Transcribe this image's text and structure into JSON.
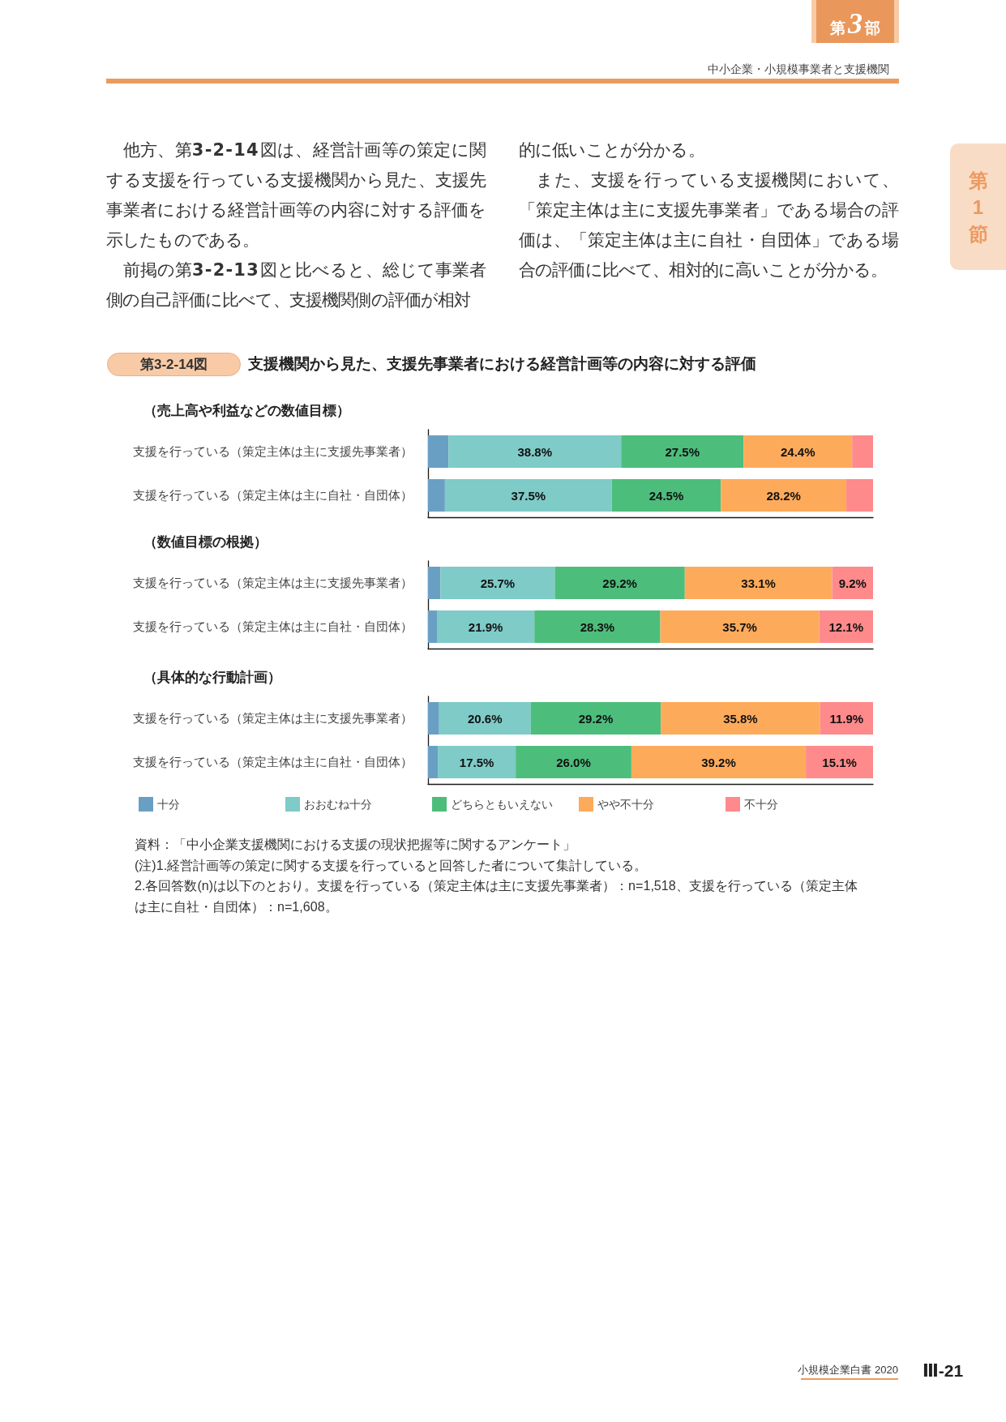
{
  "chart_data": [
    {
      "type": "bar",
      "orientation": "horizontal",
      "stacked": true,
      "tick_labels": "y",
      "title": "支援機関から見た、支援先事業者における経営計画等の内容に対する評価",
      "subtitle": "（売上高や利益などの数値目標）",
      "annotations": [
        "第3部",
        "中小企業・小規模事業者と支援機関",
        "第1節",
        "他方、第3-2-14図は、経営計画等の策定に関する支援を行っている支援機関から見た、支援先事業者における経営計画等の内容に対する評価を示したものである。",
        "前掲の第3-2-13図と比べると、総じて事業者側の自己評価に比べて、支援機関側の評価が相対",
        "的に低いことが分かる。",
        "また、支援を行っている支援機関において、「策定主体は主に支援先事業者」である場合の評価は、「策定主体は主に自社・自団体」である場合の評価に比べて、相対的に高いことが分かる。",
        "第3-2-14図"
      ],
      "categories": [
        "支援を行っている（策定主体は主に支援先事業者）",
        "支援を行っている（策定主体は主に自社・自団体）"
      ],
      "series": [
        {
          "color": "#6a9fc4",
          "values": [
            4.6,
            3.8
          ]
        },
        {
          "color": "#7ecbc8",
          "values": [
            38.8,
            37.5
          ],
          "value_labels": [
            "38.8%",
            "37.5%"
          ]
        },
        {
          "color": "#4dbd7b",
          "values": [
            27.5,
            24.5
          ],
          "value_labels": [
            "27.5%",
            "24.5%"
          ]
        },
        {
          "color": "#fdab5b",
          "values": [
            24.4,
            28.2
          ],
          "value_labels": [
            "24.4%",
            "28.2%"
          ]
        },
        {
          "color": "#fe8a8b",
          "values": [
            4.7,
            6.0
          ]
        }
      ]
    },
    {
      "type": "bar",
      "orientation": "horizontal",
      "stacked": true,
      "tick_labels": "y",
      "subtitle": "（数値目標の根拠）",
      "categories": [
        "支援を行っている（策定主体は主に支援先事業者）",
        "支援を行っている（策定主体は主に自社・自団体）"
      ],
      "series": [
        {
          "color": "#6a9fc4",
          "values": [
            2.8,
            2.0
          ]
        },
        {
          "color": "#7ecbc8",
          "values": [
            25.7,
            21.9
          ],
          "value_labels": [
            "25.7%",
            "21.9%"
          ]
        },
        {
          "color": "#4dbd7b",
          "values": [
            29.2,
            28.3
          ],
          "value_labels": [
            "29.2%",
            "28.3%"
          ]
        },
        {
          "color": "#fdab5b",
          "values": [
            33.1,
            35.7
          ],
          "value_labels": [
            "33.1%",
            "35.7%"
          ]
        },
        {
          "color": "#fe8a8b",
          "values": [
            9.2,
            12.1
          ],
          "value_labels": [
            "9.2%",
            "12.1%"
          ]
        }
      ]
    },
    {
      "type": "bar",
      "orientation": "horizontal",
      "stacked": true,
      "tick_labels": "y",
      "legend": "bottom",
      "subtitle": "（具体的な行動計画）",
      "annotations": [
        "資料：「中小企業支援機関における支援の現状把握等に関するアンケート」",
        "(注)1.経営計画等の策定に関する支援を行っていると回答した者について集計している。",
        "2.各回答数(n)は以下のとおり。支援を行っている（策定主体は主に支援先事業者）：n=1,518、支援を行っている（策定主体は主に自社・自団体）：n=1,608。",
        "小規模企業白書 2020",
        "Ⅲ-21"
      ],
      "categories": [
        "支援を行っている（策定主体は主に支援先事業者）",
        "支援を行っている（策定主体は主に自社・自団体）"
      ],
      "series": [
        {
          "name": "十分",
          "color": "#6a9fc4",
          "values": [
            2.5,
            2.2
          ]
        },
        {
          "name": "おおむね十分",
          "color": "#7ecbc8",
          "values": [
            20.6,
            17.5
          ],
          "value_labels": [
            "20.6%",
            "17.5%"
          ]
        },
        {
          "name": "どちらともいえない",
          "color": "#4dbd7b",
          "values": [
            29.2,
            26.0
          ],
          "value_labels": [
            "29.2%",
            "26.0%"
          ]
        },
        {
          "name": "やや不十分",
          "color": "#fdab5b",
          "values": [
            35.8,
            39.2
          ],
          "value_labels": [
            "35.8%",
            "39.2%"
          ]
        },
        {
          "name": "不十分",
          "color": "#fe8a8b",
          "values": [
            11.9,
            15.1
          ],
          "value_labels": [
            "11.9%",
            "15.1%"
          ]
        }
      ]
    }
  ]
}
